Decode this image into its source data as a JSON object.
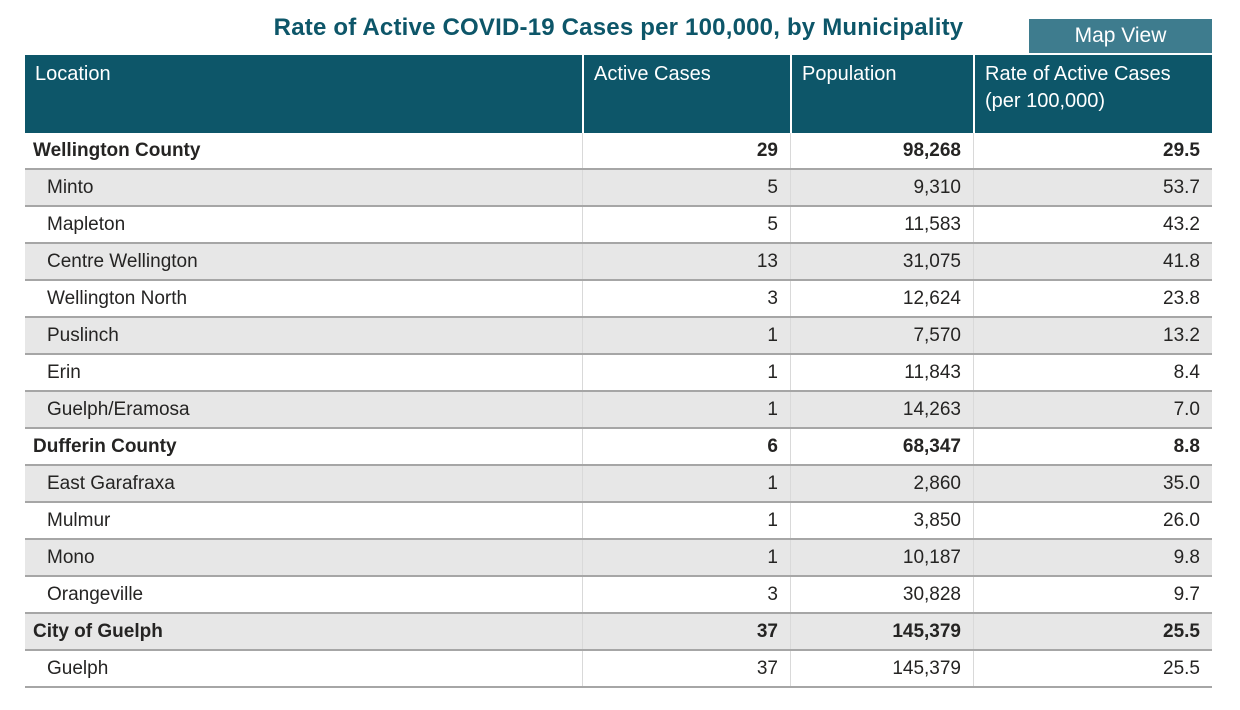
{
  "title": "Rate of Active COVID-19 Cases per 100,000, by Municipality",
  "map_view_button": {
    "label": "Map View"
  },
  "colors": {
    "accent_teal_dark": "#0d5669",
    "button_teal": "#3e7c8e",
    "alt_row_gray": "#e7e7e7",
    "row_separator_gray": "#a6a6a6",
    "body_divider_gray": "#d9d9d9",
    "header_text": "#ffffff",
    "body_text": "#252423"
  },
  "chart_data": {
    "type": "table",
    "title": "Rate of Active COVID-19 Cases per 100,000, by Municipality",
    "columns": [
      "Location",
      "Active Cases",
      "Population",
      "Rate of Active Cases (per 100,000)"
    ],
    "rows": [
      {
        "location": "Wellington County",
        "active_cases": "29",
        "population": "98,268",
        "rate": "29.5",
        "bold": true
      },
      {
        "location": "Minto",
        "active_cases": "5",
        "population": "9,310",
        "rate": "53.7",
        "bold": false
      },
      {
        "location": "Mapleton",
        "active_cases": "5",
        "population": "11,583",
        "rate": "43.2",
        "bold": false
      },
      {
        "location": "Centre Wellington",
        "active_cases": "13",
        "population": "31,075",
        "rate": "41.8",
        "bold": false
      },
      {
        "location": "Wellington North",
        "active_cases": "3",
        "population": "12,624",
        "rate": "23.8",
        "bold": false
      },
      {
        "location": "Puslinch",
        "active_cases": "1",
        "population": "7,570",
        "rate": "13.2",
        "bold": false
      },
      {
        "location": "Erin",
        "active_cases": "1",
        "population": "11,843",
        "rate": "8.4",
        "bold": false
      },
      {
        "location": "Guelph/Eramosa",
        "active_cases": "1",
        "population": "14,263",
        "rate": "7.0",
        "bold": false
      },
      {
        "location": "Dufferin County",
        "active_cases": "6",
        "population": "68,347",
        "rate": "8.8",
        "bold": true
      },
      {
        "location": "East Garafraxa",
        "active_cases": "1",
        "population": "2,860",
        "rate": "35.0",
        "bold": false
      },
      {
        "location": "Mulmur",
        "active_cases": "1",
        "population": "3,850",
        "rate": "26.0",
        "bold": false
      },
      {
        "location": "Mono",
        "active_cases": "1",
        "population": "10,187",
        "rate": "9.8",
        "bold": false
      },
      {
        "location": "Orangeville",
        "active_cases": "3",
        "population": "30,828",
        "rate": "9.7",
        "bold": false
      },
      {
        "location": "City of Guelph",
        "active_cases": "37",
        "population": "145,379",
        "rate": "25.5",
        "bold": true
      },
      {
        "location": "Guelph",
        "active_cases": "37",
        "population": "145,379",
        "rate": "25.5",
        "bold": false
      }
    ]
  },
  "table_header": {
    "location": "Location",
    "active_cases": "Active Cases",
    "population": "Population",
    "rate": "Rate of Active Cases (per 100,000)"
  }
}
